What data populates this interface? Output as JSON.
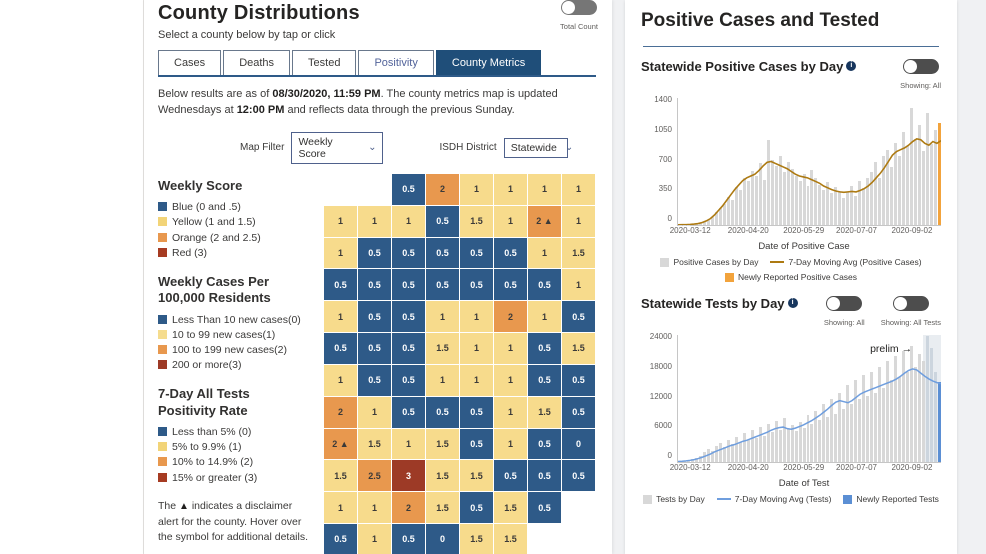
{
  "icons": {
    "info": "i",
    "chevron_down": "⌄",
    "alert_triangle": "▲"
  },
  "left_panel": {
    "title": "County Distributions",
    "subtitle": "Select a county below by tap or click",
    "total_count_label": "Total Count",
    "tabs": [
      {
        "label": "Cases"
      },
      {
        "label": "Deaths"
      },
      {
        "label": "Tested"
      },
      {
        "label": "Positivity"
      },
      {
        "label": "County Metrics"
      }
    ],
    "note": {
      "part1": "Below results are as of ",
      "bold1": "08/30/2020, 11:59 PM",
      "part2": ". The county metrics map is updated Wednesdays at ",
      "bold2": "12:00 PM",
      "part3": " and reflects data through the previous Sunday."
    },
    "filters": {
      "map_filter_label": "Map Filter",
      "map_filter_value": "Weekly Score",
      "district_label": "ISDH District",
      "district_value": "Statewide"
    },
    "legend_weekly_score": {
      "title": "Weekly Score",
      "items": [
        {
          "swatch": "#2e5a88",
          "label": "Blue (0 and .5)"
        },
        {
          "swatch": "#f2d478",
          "label": "Yellow (1 and 1.5)"
        },
        {
          "swatch": "#e8984e",
          "label": "Orange (2 and 2.5)"
        },
        {
          "swatch": "#a63b22",
          "label": "Red (3)"
        }
      ]
    },
    "legend_weekly_cases": {
      "title": "Weekly Cases Per 100,000 Residents",
      "items": [
        {
          "swatch": "#2e5a88",
          "label": "Less Than 10 new cases(0)"
        },
        {
          "swatch": "#f5dc8e",
          "label": "10 to 99 new cases(1)"
        },
        {
          "swatch": "#e8984e",
          "label": "100 to 199 new cases(2)"
        },
        {
          "swatch": "#9d3a26",
          "label": "200 or more(3)"
        }
      ]
    },
    "legend_positivity": {
      "title": "7-Day All Tests Positivity Rate",
      "items": [
        {
          "swatch": "#2e5a88",
          "label": "Less than 5% (0)"
        },
        {
          "swatch": "#f2d478",
          "label": "5% to 9.9% (1)"
        },
        {
          "swatch": "#e8984e",
          "label": "10% to 14.9% (2)"
        },
        {
          "swatch": "#a63b22",
          "label": "15% or greater (3)"
        }
      ]
    },
    "disclaimer": {
      "pre": "The ",
      "triangle": "▲",
      "post": " indicates a disclaimer alert for the county. Hover over the symbol for additional details."
    }
  },
  "map": {
    "colors": {
      "blue": "#2e5a88",
      "yellow": "#f7db8c",
      "orange": "#e8984e",
      "red": "#9d3a26"
    },
    "cells": [
      {
        "r": 0,
        "c": 2,
        "k": "blue",
        "v": "0.5"
      },
      {
        "r": 0,
        "c": 3,
        "k": "orange",
        "v": "2"
      },
      {
        "r": 0,
        "c": 4,
        "k": "yellow",
        "v": "1"
      },
      {
        "r": 0,
        "c": 5,
        "k": "yellow",
        "v": "1"
      },
      {
        "r": 0,
        "c": 6,
        "k": "yellow",
        "v": "1"
      },
      {
        "r": 0,
        "c": 7,
        "k": "yellow",
        "v": "1"
      },
      {
        "r": 1,
        "c": 0,
        "k": "yellow",
        "v": "1"
      },
      {
        "r": 1,
        "c": 1,
        "k": "yellow",
        "v": "1"
      },
      {
        "r": 1,
        "c": 2,
        "k": "yellow",
        "v": "1"
      },
      {
        "r": 1,
        "c": 3,
        "k": "blue",
        "v": "0.5"
      },
      {
        "r": 1,
        "c": 4,
        "k": "yellow",
        "v": "1.5"
      },
      {
        "r": 1,
        "c": 5,
        "k": "yellow",
        "v": "1"
      },
      {
        "r": 1,
        "c": 6,
        "k": "orange",
        "v": "2",
        "a": true
      },
      {
        "r": 1,
        "c": 7,
        "k": "yellow",
        "v": "1"
      },
      {
        "r": 2,
        "c": 0,
        "k": "yellow",
        "v": "1"
      },
      {
        "r": 2,
        "c": 1,
        "k": "blue",
        "v": "0.5"
      },
      {
        "r": 2,
        "c": 2,
        "k": "blue",
        "v": "0.5"
      },
      {
        "r": 2,
        "c": 3,
        "k": "blue",
        "v": "0.5"
      },
      {
        "r": 2,
        "c": 4,
        "k": "blue",
        "v": "0.5"
      },
      {
        "r": 2,
        "c": 5,
        "k": "blue",
        "v": "0.5"
      },
      {
        "r": 2,
        "c": 6,
        "k": "yellow",
        "v": "1"
      },
      {
        "r": 2,
        "c": 7,
        "k": "yellow",
        "v": "1.5"
      },
      {
        "r": 3,
        "c": 0,
        "k": "blue",
        "v": "0.5"
      },
      {
        "r": 3,
        "c": 1,
        "k": "blue",
        "v": "0.5"
      },
      {
        "r": 3,
        "c": 2,
        "k": "blue",
        "v": "0.5"
      },
      {
        "r": 3,
        "c": 3,
        "k": "blue",
        "v": "0.5"
      },
      {
        "r": 3,
        "c": 4,
        "k": "blue",
        "v": "0.5"
      },
      {
        "r": 3,
        "c": 5,
        "k": "blue",
        "v": "0.5"
      },
      {
        "r": 3,
        "c": 6,
        "k": "blue",
        "v": "0.5"
      },
      {
        "r": 3,
        "c": 7,
        "k": "yellow",
        "v": "1"
      },
      {
        "r": 4,
        "c": 0,
        "k": "yellow",
        "v": "1"
      },
      {
        "r": 4,
        "c": 1,
        "k": "blue",
        "v": "0.5"
      },
      {
        "r": 4,
        "c": 2,
        "k": "blue",
        "v": "0.5"
      },
      {
        "r": 4,
        "c": 3,
        "k": "yellow",
        "v": "1"
      },
      {
        "r": 4,
        "c": 4,
        "k": "yellow",
        "v": "1"
      },
      {
        "r": 4,
        "c": 5,
        "k": "orange",
        "v": "2"
      },
      {
        "r": 4,
        "c": 6,
        "k": "yellow",
        "v": "1"
      },
      {
        "r": 4,
        "c": 7,
        "k": "blue",
        "v": "0.5"
      },
      {
        "r": 5,
        "c": 0,
        "k": "blue",
        "v": "0.5"
      },
      {
        "r": 5,
        "c": 1,
        "k": "blue",
        "v": "0.5"
      },
      {
        "r": 5,
        "c": 2,
        "k": "blue",
        "v": "0.5"
      },
      {
        "r": 5,
        "c": 3,
        "k": "yellow",
        "v": "1.5"
      },
      {
        "r": 5,
        "c": 4,
        "k": "yellow",
        "v": "1"
      },
      {
        "r": 5,
        "c": 5,
        "k": "yellow",
        "v": "1"
      },
      {
        "r": 5,
        "c": 6,
        "k": "blue",
        "v": "0.5"
      },
      {
        "r": 5,
        "c": 7,
        "k": "yellow",
        "v": "1.5"
      },
      {
        "r": 6,
        "c": 0,
        "k": "yellow",
        "v": "1"
      },
      {
        "r": 6,
        "c": 1,
        "k": "blue",
        "v": "0.5"
      },
      {
        "r": 6,
        "c": 2,
        "k": "blue",
        "v": "0.5"
      },
      {
        "r": 6,
        "c": 3,
        "k": "yellow",
        "v": "1"
      },
      {
        "r": 6,
        "c": 4,
        "k": "yellow",
        "v": "1"
      },
      {
        "r": 6,
        "c": 5,
        "k": "yellow",
        "v": "1"
      },
      {
        "r": 6,
        "c": 6,
        "k": "blue",
        "v": "0.5"
      },
      {
        "r": 6,
        "c": 7,
        "k": "blue",
        "v": "0.5"
      },
      {
        "r": 7,
        "c": 0,
        "k": "orange",
        "v": "2"
      },
      {
        "r": 7,
        "c": 1,
        "k": "yellow",
        "v": "1"
      },
      {
        "r": 7,
        "c": 2,
        "k": "blue",
        "v": "0.5"
      },
      {
        "r": 7,
        "c": 3,
        "k": "blue",
        "v": "0.5"
      },
      {
        "r": 7,
        "c": 4,
        "k": "blue",
        "v": "0.5"
      },
      {
        "r": 7,
        "c": 5,
        "k": "yellow",
        "v": "1"
      },
      {
        "r": 7,
        "c": 6,
        "k": "yellow",
        "v": "1.5"
      },
      {
        "r": 7,
        "c": 7,
        "k": "blue",
        "v": "0.5"
      },
      {
        "r": 8,
        "c": 0,
        "k": "orange",
        "v": "2",
        "a": true
      },
      {
        "r": 8,
        "c": 1,
        "k": "yellow",
        "v": "1.5"
      },
      {
        "r": 8,
        "c": 2,
        "k": "yellow",
        "v": "1"
      },
      {
        "r": 8,
        "c": 3,
        "k": "yellow",
        "v": "1.5"
      },
      {
        "r": 8,
        "c": 4,
        "k": "blue",
        "v": "0.5"
      },
      {
        "r": 8,
        "c": 5,
        "k": "yellow",
        "v": "1"
      },
      {
        "r": 8,
        "c": 6,
        "k": "blue",
        "v": "0.5"
      },
      {
        "r": 8,
        "c": 7,
        "k": "blue",
        "v": "0"
      },
      {
        "r": 9,
        "c": 0,
        "k": "yellow",
        "v": "1.5"
      },
      {
        "r": 9,
        "c": 1,
        "k": "orange",
        "v": "2.5"
      },
      {
        "r": 9,
        "c": 2,
        "k": "red",
        "v": "3"
      },
      {
        "r": 9,
        "c": 3,
        "k": "yellow",
        "v": "1.5"
      },
      {
        "r": 9,
        "c": 4,
        "k": "yellow",
        "v": "1.5"
      },
      {
        "r": 9,
        "c": 5,
        "k": "blue",
        "v": "0.5"
      },
      {
        "r": 9,
        "c": 6,
        "k": "blue",
        "v": "0.5"
      },
      {
        "r": 9,
        "c": 7,
        "k": "blue",
        "v": "0.5"
      },
      {
        "r": 10,
        "c": 0,
        "k": "yellow",
        "v": "1"
      },
      {
        "r": 10,
        "c": 1,
        "k": "yellow",
        "v": "1"
      },
      {
        "r": 10,
        "c": 2,
        "k": "orange",
        "v": "2"
      },
      {
        "r": 10,
        "c": 3,
        "k": "yellow",
        "v": "1.5"
      },
      {
        "r": 10,
        "c": 4,
        "k": "blue",
        "v": "0.5"
      },
      {
        "r": 10,
        "c": 5,
        "k": "yellow",
        "v": "1.5"
      },
      {
        "r": 10,
        "c": 6,
        "k": "blue",
        "v": "0.5"
      },
      {
        "r": 11,
        "c": 0,
        "k": "blue",
        "v": "0.5"
      },
      {
        "r": 11,
        "c": 1,
        "k": "yellow",
        "v": "1"
      },
      {
        "r": 11,
        "c": 2,
        "k": "blue",
        "v": "0.5"
      },
      {
        "r": 11,
        "c": 3,
        "k": "blue",
        "v": "0"
      },
      {
        "r": 11,
        "c": 4,
        "k": "yellow",
        "v": "1.5"
      },
      {
        "r": 11,
        "c": 5,
        "k": "yellow",
        "v": "1.5"
      }
    ]
  },
  "right_panel": {
    "title": "Positive Cases and Tested",
    "section1": {
      "title": "Statewide Positive Cases by Day",
      "toggle1_label": "Showing: All"
    },
    "section2": {
      "title": "Statewide Tests by Day",
      "toggle1_label": "Showing: All",
      "toggle2_label": "Showing: All Tests"
    }
  },
  "chart_data": {
    "cases": {
      "type": "bar",
      "title": "Statewide Positive Cases by Day",
      "xlabel": "Date of Positive Case",
      "ymax": 1400,
      "yticks": [
        "1400",
        "1050",
        "700",
        "350",
        "0"
      ],
      "xticks": [
        "2020-03-12",
        "2020-04-20",
        "2020-05-29",
        "2020-07-07",
        "2020-09-02"
      ],
      "xtick_pos": [
        5,
        27,
        48,
        68,
        89
      ],
      "bar_color": "#d8d8d8",
      "line_color": "#ad7a12",
      "final_bar_color": "#f2a33c",
      "bars": [
        2,
        3,
        5,
        8,
        12,
        20,
        35,
        60,
        90,
        140,
        190,
        230,
        310,
        280,
        420,
        390,
        520,
        480,
        600,
        540,
        680,
        500,
        940,
        720,
        650,
        760,
        580,
        690,
        620,
        540,
        480,
        560,
        430,
        610,
        520,
        440,
        390,
        470,
        350,
        420,
        380,
        300,
        360,
        430,
        320,
        480,
        410,
        520,
        580,
        700,
        520,
        760,
        830,
        640,
        900,
        760,
        1020,
        870,
        1290,
        950,
        1100,
        820,
        1240,
        890,
        1050,
        1120
      ],
      "avg": [
        2,
        3,
        4,
        6,
        10,
        16,
        28,
        45,
        70,
        110,
        160,
        210,
        270,
        330,
        390,
        440,
        490,
        520,
        540,
        560,
        600,
        650,
        690,
        700,
        680,
        660,
        640,
        620,
        590,
        560,
        540,
        530,
        520,
        500,
        480,
        460,
        430,
        410,
        390,
        375,
        365,
        360,
        365,
        370,
        365,
        380,
        400,
        430,
        470,
        520,
        570,
        630,
        700,
        770,
        810,
        830,
        850,
        880,
        920,
        950,
        940,
        900,
        880,
        920,
        900,
        930
      ],
      "legend_row1": [
        {
          "swatch": "#d8d8d8",
          "type": "box",
          "label": "Positive Cases by Day"
        },
        {
          "swatch": "#ad7a12",
          "type": "line",
          "label": "7-Day Moving Avg (Positive Cases)"
        }
      ],
      "legend_row2": [
        {
          "swatch": "#f2a33c",
          "type": "box",
          "label": "Newly Reported Positive Cases"
        }
      ]
    },
    "tests": {
      "type": "bar",
      "title": "Statewide Tests by Day",
      "xlabel": "Date of Test",
      "ymax": 24000,
      "yticks": [
        "24000",
        "18000",
        "12000",
        "6000",
        "0"
      ],
      "xticks": [
        "2020-03-12",
        "2020-04-20",
        "2020-05-29",
        "2020-07-07",
        "2020-09-02"
      ],
      "xtick_pos": [
        5,
        27,
        48,
        68,
        89
      ],
      "bar_color": "#d8d8d8",
      "line_color": "#6f9ede",
      "final_bar_color": "#5b8fd4",
      "prelim_start": 62,
      "prelim_color": "#ccd5de",
      "prelim_label": "prelim →",
      "bars": [
        100,
        200,
        300,
        500,
        800,
        1200,
        1800,
        2400,
        2000,
        3000,
        3600,
        2800,
        4200,
        3400,
        4800,
        3800,
        5400,
        4200,
        6000,
        4600,
        6600,
        5000,
        7200,
        5600,
        7800,
        6000,
        8400,
        6200,
        7000,
        5800,
        7600,
        6400,
        8800,
        7200,
        9600,
        8000,
        11000,
        8600,
        12000,
        9000,
        13000,
        10000,
        14500,
        11000,
        15500,
        12000,
        16500,
        12500,
        17000,
        13000,
        18000,
        14000,
        19000,
        15500,
        20000,
        16000,
        21000,
        17000,
        22000,
        18000,
        20500,
        19000,
        23800,
        21500,
        17000,
        15200
      ],
      "avg": [
        100,
        150,
        220,
        320,
        450,
        650,
        900,
        1200,
        1500,
        1900,
        2200,
        2500,
        2800,
        3100,
        3300,
        3600,
        3900,
        4100,
        4400,
        4700,
        5000,
        5300,
        5600,
        6000,
        6300,
        6500,
        6600,
        6300,
        6200,
        6400,
        6700,
        7000,
        7400,
        7800,
        8300,
        8800,
        9400,
        10000,
        10700,
        11300,
        11600,
        11400,
        11200,
        11600,
        12200,
        12800,
        13200,
        13500,
        13800,
        14100,
        14400,
        14700,
        15000,
        15300,
        15700,
        16200,
        16800,
        17300,
        17600,
        17400,
        16800,
        16200,
        15700,
        15300,
        15000,
        14800
      ],
      "legend_row1": [
        {
          "swatch": "#d8d8d8",
          "type": "box",
          "label": "Tests by Day"
        },
        {
          "swatch": "#6f9ede",
          "type": "line",
          "label": "7-Day Moving Avg (Tests)"
        },
        {
          "swatch": "#5b8fd4",
          "type": "box",
          "label": "Newly Reported Tests"
        }
      ]
    }
  }
}
